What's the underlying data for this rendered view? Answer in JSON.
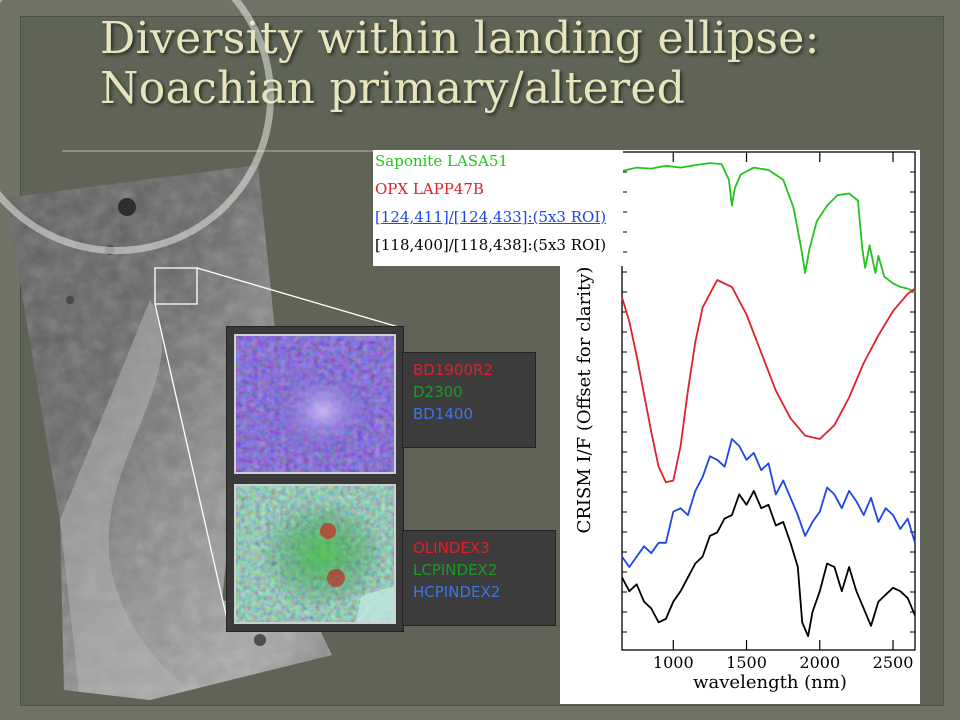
{
  "title": {
    "line1": "Diversity within landing ellipse:",
    "line2": "Noachian primary/altered"
  },
  "colors": {
    "background": "#6f7466",
    "title_text": "#e7e5bd",
    "red": "#e0202a",
    "green": "#24c41e",
    "blue": "#1e46e6",
    "black": "#000000"
  },
  "index_panels": [
    {
      "items": [
        {
          "label": "BD1900R2",
          "color": "#e0202a"
        },
        {
          "label": "D2300",
          "color": "#1f9a1f"
        },
        {
          "label": "BD1400",
          "color": "#3a78e6"
        }
      ]
    },
    {
      "items": [
        {
          "label": "OLINDEX3",
          "color": "#e0202a"
        },
        {
          "label": "LCPINDEX2",
          "color": "#1f9a1f"
        },
        {
          "label": "HCPINDEX2",
          "color": "#3a78e6"
        }
      ]
    }
  ],
  "chart_data": {
    "type": "line",
    "title": "",
    "xlabel": "wavelength (nm)",
    "ylabel": "CRISM I/F (Offset for clarity)",
    "xlim": [
      650,
      2650
    ],
    "x_ticks": [
      1000,
      1500,
      2000,
      2500
    ],
    "grid": false,
    "legend_position": "top-left",
    "series": [
      {
        "name": "Saponite LASA51",
        "color": "#24c41e",
        "x": [
          650,
          750,
          850,
          950,
          1050,
          1150,
          1250,
          1330,
          1380,
          1400,
          1420,
          1460,
          1550,
          1650,
          1750,
          1820,
          1870,
          1900,
          1930,
          1980,
          2050,
          2120,
          2200,
          2260,
          2290,
          2310,
          2340,
          2380,
          2400,
          2440,
          2500,
          2550,
          2600,
          2650
        ],
        "y": [
          9.55,
          9.65,
          9.62,
          9.7,
          9.65,
          9.72,
          9.78,
          9.75,
          9.3,
          8.55,
          9.05,
          9.45,
          9.65,
          9.58,
          9.3,
          8.5,
          7.4,
          6.6,
          7.3,
          8.1,
          8.55,
          8.85,
          8.9,
          8.7,
          7.3,
          6.75,
          7.4,
          6.6,
          7.1,
          6.5,
          6.3,
          6.2,
          6.15,
          6.05
        ]
      },
      {
        "name": "OPX LAPP47B",
        "color": "#e0202a",
        "x": [
          650,
          700,
          750,
          800,
          850,
          900,
          950,
          1000,
          1050,
          1100,
          1150,
          1200,
          1300,
          1400,
          1500,
          1600,
          1700,
          1800,
          1900,
          2000,
          2100,
          2200,
          2300,
          2400,
          2500,
          2600,
          2650
        ],
        "y": [
          5.9,
          5.2,
          4.2,
          3.1,
          2.0,
          1.0,
          0.55,
          0.6,
          1.6,
          3.2,
          4.6,
          5.6,
          6.4,
          6.2,
          5.4,
          4.3,
          3.2,
          2.4,
          1.9,
          1.8,
          2.2,
          3.0,
          4.0,
          4.8,
          5.5,
          6.0,
          6.15
        ]
      },
      {
        "name": "[124,411]/[124,433]:(5x3 ROI)",
        "color": "#1e46e6",
        "x": [
          650,
          700,
          750,
          800,
          850,
          900,
          950,
          1000,
          1050,
          1100,
          1150,
          1200,
          1250,
          1300,
          1350,
          1400,
          1450,
          1500,
          1550,
          1600,
          1650,
          1700,
          1750,
          1800,
          1850,
          1900,
          1950,
          2000,
          2050,
          2100,
          2150,
          2200,
          2250,
          2300,
          2350,
          2400,
          2450,
          2500,
          2550,
          2600,
          2650
        ],
        "y": [
          -1.6,
          -1.9,
          -1.6,
          -1.3,
          -1.5,
          -1.2,
          -1.2,
          -0.3,
          -0.2,
          -0.4,
          0.3,
          0.7,
          1.3,
          1.2,
          1.0,
          1.8,
          1.6,
          1.2,
          1.4,
          0.9,
          1.1,
          0.2,
          0.6,
          0.1,
          -0.4,
          -1.0,
          -0.6,
          -0.3,
          0.4,
          0.2,
          -0.2,
          0.3,
          0.0,
          -0.4,
          0.1,
          -0.6,
          -0.2,
          -0.4,
          -0.8,
          -0.5,
          -1.2
        ]
      },
      {
        "name": "[118,400]/[118,438]:(5x3 ROI)",
        "color": "#000000",
        "x": [
          650,
          700,
          750,
          800,
          850,
          900,
          950,
          1000,
          1050,
          1100,
          1150,
          1200,
          1250,
          1300,
          1350,
          1400,
          1450,
          1500,
          1550,
          1600,
          1650,
          1700,
          1750,
          1800,
          1850,
          1880,
          1920,
          1950,
          2000,
          2050,
          2100,
          2150,
          2200,
          2250,
          2300,
          2350,
          2400,
          2450,
          2500,
          2550,
          2600,
          2650
        ],
        "y": [
          -2.2,
          -2.6,
          -2.4,
          -2.9,
          -3.1,
          -3.5,
          -3.4,
          -2.9,
          -2.6,
          -2.2,
          -1.8,
          -1.6,
          -1.0,
          -0.9,
          -0.5,
          -0.4,
          0.2,
          -0.1,
          0.3,
          -0.2,
          -0.1,
          -0.7,
          -0.6,
          -1.2,
          -1.9,
          -3.5,
          -3.9,
          -3.2,
          -2.6,
          -1.8,
          -1.9,
          -2.6,
          -1.9,
          -2.6,
          -3.1,
          -3.6,
          -2.9,
          -2.7,
          -2.5,
          -2.6,
          -2.8,
          -3.3
        ]
      }
    ]
  }
}
